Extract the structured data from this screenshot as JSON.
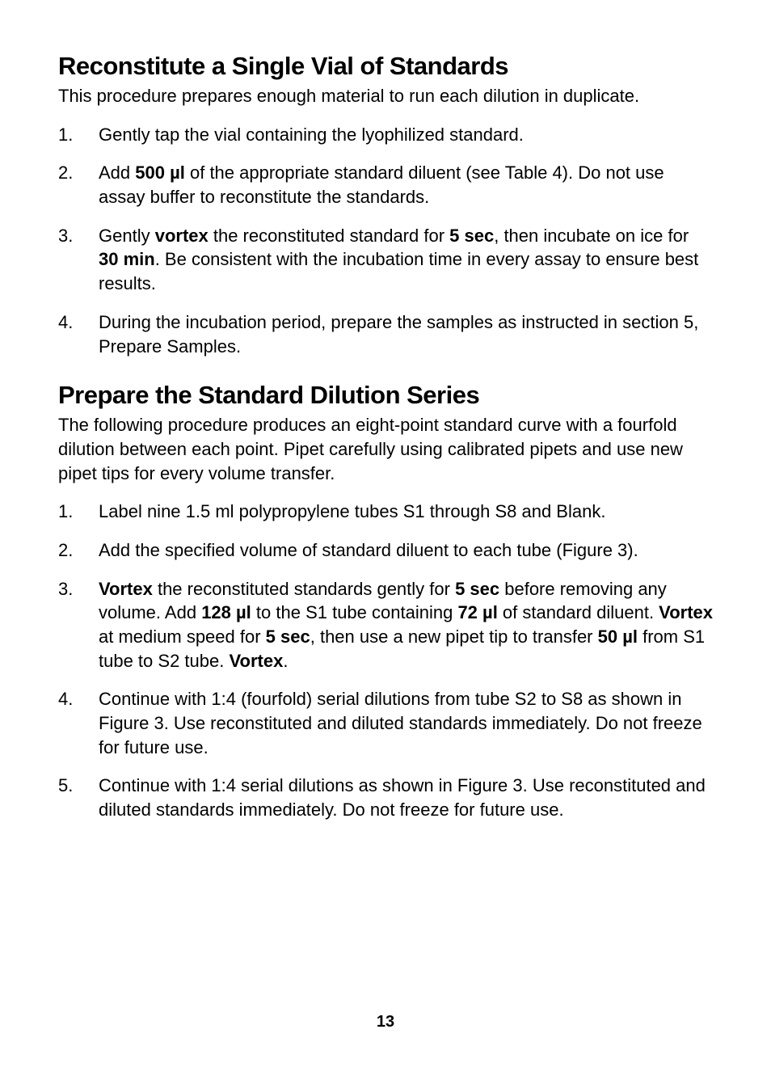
{
  "section1": {
    "heading": "Reconstitute a Single Vial of Standards",
    "intro": "This procedure prepares enough material to run each dilution in duplicate.",
    "items": [
      {
        "parts": [
          {
            "t": "Gently tap the vial containing the lyophilized standard."
          }
        ]
      },
      {
        "parts": [
          {
            "t": "Add "
          },
          {
            "t": "500 µl",
            "b": true
          },
          {
            "t": " of the appropriate standard diluent (see Table 4). Do not use assay buffer to reconstitute the standards."
          }
        ]
      },
      {
        "parts": [
          {
            "t": "Gently "
          },
          {
            "t": "vortex",
            "b": true
          },
          {
            "t": " the reconstituted standard for "
          },
          {
            "t": "5 sec",
            "b": true
          },
          {
            "t": ", then incubate on ice for "
          },
          {
            "t": "30 min",
            "b": true
          },
          {
            "t": ". Be consistent with the incubation time in every assay to ensure best results."
          }
        ]
      },
      {
        "parts": [
          {
            "t": "During the incubation period, prepare the samples as instructed in section 5, Prepare Samples."
          }
        ]
      }
    ]
  },
  "section2": {
    "heading": "Prepare the Standard Dilution Series",
    "intro": "The following procedure produces an eight-point standard curve with a fourfold dilution between each point. Pipet carefully using calibrated pipets and use new pipet tips for every volume transfer.",
    "items": [
      {
        "parts": [
          {
            "t": "Label nine 1.5 ml polypropylene tubes S1 through S8 and Blank."
          }
        ]
      },
      {
        "parts": [
          {
            "t": "Add the specified volume of standard diluent to each tube (Figure 3)."
          }
        ]
      },
      {
        "parts": [
          {
            "t": "Vortex",
            "b": true
          },
          {
            "t": " the reconstituted standards gently for "
          },
          {
            "t": "5 sec",
            "b": true
          },
          {
            "t": " before removing any volume. Add "
          },
          {
            "t": "128 µl",
            "b": true
          },
          {
            "t": " to the S1 tube containing "
          },
          {
            "t": "72 µl",
            "b": true
          },
          {
            "t": " of standard diluent. "
          },
          {
            "t": "Vortex",
            "b": true
          },
          {
            "t": " at medium speed for "
          },
          {
            "t": "5 sec",
            "b": true
          },
          {
            "t": ", then use a new pipet tip to transfer "
          },
          {
            "t": "50 µl",
            "b": true
          },
          {
            "t": " from S1 tube to S2 tube. "
          },
          {
            "t": "Vortex",
            "b": true
          },
          {
            "t": "."
          }
        ]
      },
      {
        "parts": [
          {
            "t": "Continue with 1:4 (fourfold) serial dilutions from tube S2 to S8 as shown in Figure 3. Use reconstituted and diluted standards immediately. Do not freeze for future use."
          }
        ]
      },
      {
        "parts": [
          {
            "t": "Continue with 1:4 serial dilutions as shown in Figure 3. Use reconstituted and diluted standards immediately. Do not freeze for future use."
          }
        ]
      }
    ]
  },
  "pageNumber": "13"
}
